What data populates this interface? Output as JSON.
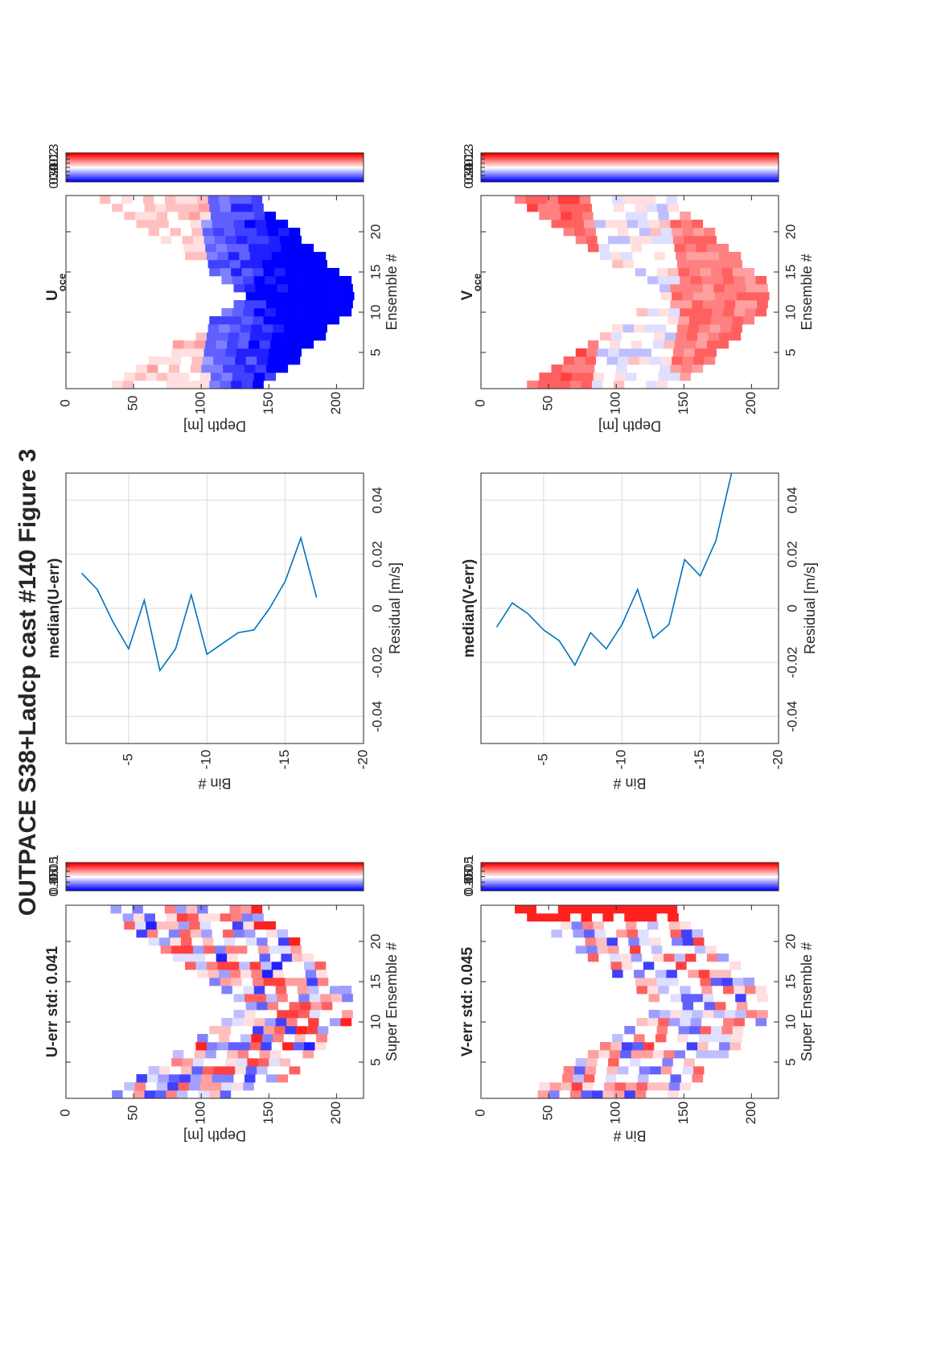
{
  "figure": {
    "title": "OUTPACE S38+Ladcp cast #140  Figure 3"
  },
  "chart_data": [
    {
      "id": "u_err",
      "type": "heatmap",
      "title": "U-err std: 0.041",
      "xlabel": "Super Ensemble #",
      "ylabel": "Depth [m]",
      "xticks": [
        "5",
        "10",
        "15",
        "20"
      ],
      "yticks": [
        "0",
        "50",
        "100",
        "150",
        "200"
      ],
      "xlim": [
        0.5,
        24.5
      ],
      "ylim": [
        0,
        220
      ],
      "clim": [
        -0.13,
        0.13
      ],
      "colorbar_ticks": [
        "0.1",
        "0.05",
        "0",
        "-0.05",
        "-0.1"
      ],
      "colorbar_values": [
        0.1,
        0.05,
        0,
        -0.05,
        -0.1
      ],
      "grid": false,
      "note": "pattern-approximated cells"
    },
    {
      "id": "median_u_err",
      "type": "line",
      "title": "median(U-err)",
      "xlabel": "Residual [m/s]",
      "ylabel": "Bin #",
      "xticks": [
        "-0.04",
        "-0.02",
        "0",
        "0.02",
        "0.04"
      ],
      "xtick_values": [
        -0.04,
        -0.02,
        0,
        0.02,
        0.04
      ],
      "yticks": [
        "-5",
        "-10",
        "-15",
        "-20"
      ],
      "ytick_values": [
        -5,
        -10,
        -15,
        -20
      ],
      "xlim": [
        -0.05,
        0.05
      ],
      "ylim": [
        -20,
        -1
      ],
      "grid": true,
      "series": [
        {
          "color": "#0072bd",
          "x": [
            0.013,
            0.007,
            -0.005,
            -0.015,
            0.003,
            -0.023,
            -0.015,
            0.005,
            -0.017,
            -0.013,
            -0.009,
            -0.008,
            0.0,
            0.01,
            0.026,
            0.004
          ],
          "y": [
            -2,
            -3,
            -4,
            -5,
            -6,
            -7,
            -8,
            -9,
            -10,
            -11,
            -12,
            -13,
            -14,
            -15,
            -16,
            -17
          ]
        }
      ]
    },
    {
      "id": "u_oce",
      "type": "heatmap",
      "title": "U",
      "title_sub": "oce",
      "xlabel": "Ensemble #",
      "ylabel": "Depth [m]",
      "xticks": [
        "5",
        "10",
        "15",
        "20"
      ],
      "yticks": [
        "0",
        "50",
        "100",
        "150",
        "200"
      ],
      "xlim": [
        0.5,
        24.5
      ],
      "ylim": [
        0,
        220
      ],
      "clim": [
        -0.35,
        0.35
      ],
      "colorbar_ticks": [
        "0.3",
        "0.2",
        "0.1",
        "0",
        "-0.1",
        "-0.2",
        "-0.3"
      ],
      "colorbar_values": [
        0.3,
        0.2,
        0.1,
        0,
        -0.1,
        -0.2,
        -0.3
      ],
      "grid": false
    },
    {
      "id": "v_err",
      "type": "heatmap",
      "title": "V-err std: 0.045",
      "xlabel": "Super Ensemble #",
      "ylabel": "Bin #",
      "xticks": [
        "5",
        "10",
        "15",
        "20"
      ],
      "yticks": [
        "0",
        "50",
        "100",
        "150",
        "200"
      ],
      "xlim": [
        0.5,
        24.5
      ],
      "ylim": [
        0,
        220
      ],
      "clim": [
        -0.13,
        0.13
      ],
      "colorbar_ticks": [
        "0.1",
        "0.05",
        "0",
        "-0.05",
        "-0.1"
      ],
      "colorbar_values": [
        0.1,
        0.05,
        0,
        -0.05,
        -0.1
      ],
      "grid": false
    },
    {
      "id": "median_v_err",
      "type": "line",
      "title": "median(V-err)",
      "xlabel": "Residual [m/s]",
      "ylabel": "Bin #",
      "xticks": [
        "-0.04",
        "-0.02",
        "0",
        "0.02",
        "0.04"
      ],
      "xtick_values": [
        -0.04,
        -0.02,
        0,
        0.02,
        0.04
      ],
      "yticks": [
        "-5",
        "-10",
        "-15",
        "-20"
      ],
      "ytick_values": [
        -5,
        -10,
        -15,
        -20
      ],
      "xlim": [
        -0.05,
        0.05
      ],
      "ylim": [
        -20,
        -1
      ],
      "grid": true,
      "series": [
        {
          "color": "#0072bd",
          "x": [
            -0.007,
            0.002,
            -0.002,
            -0.008,
            -0.012,
            -0.021,
            -0.009,
            -0.015,
            -0.006,
            0.007,
            -0.011,
            -0.006,
            0.018,
            0.012,
            0.025,
            0.05
          ],
          "y": [
            -2,
            -3,
            -4,
            -5,
            -6,
            -7,
            -8,
            -9,
            -10,
            -11,
            -12,
            -13,
            -14,
            -15,
            -16,
            -17
          ]
        }
      ]
    },
    {
      "id": "v_oce",
      "type": "heatmap",
      "title": "V",
      "title_sub": "oce",
      "xlabel": "Ensemble #",
      "ylabel": "Depth [m]",
      "xticks": [
        "5",
        "10",
        "15",
        "20"
      ],
      "yticks": [
        "0",
        "50",
        "100",
        "150",
        "200"
      ],
      "xlim": [
        0.5,
        24.5
      ],
      "ylim": [
        0,
        220
      ],
      "clim": [
        -0.35,
        0.35
      ],
      "colorbar_ticks": [
        "0.3",
        "0.2",
        "0.1",
        "0",
        "-0.1",
        "-0.2",
        "-0.3"
      ],
      "colorbar_values": [
        0.3,
        0.2,
        0.1,
        0,
        -0.1,
        -0.2,
        -0.3
      ],
      "grid": false
    }
  ]
}
